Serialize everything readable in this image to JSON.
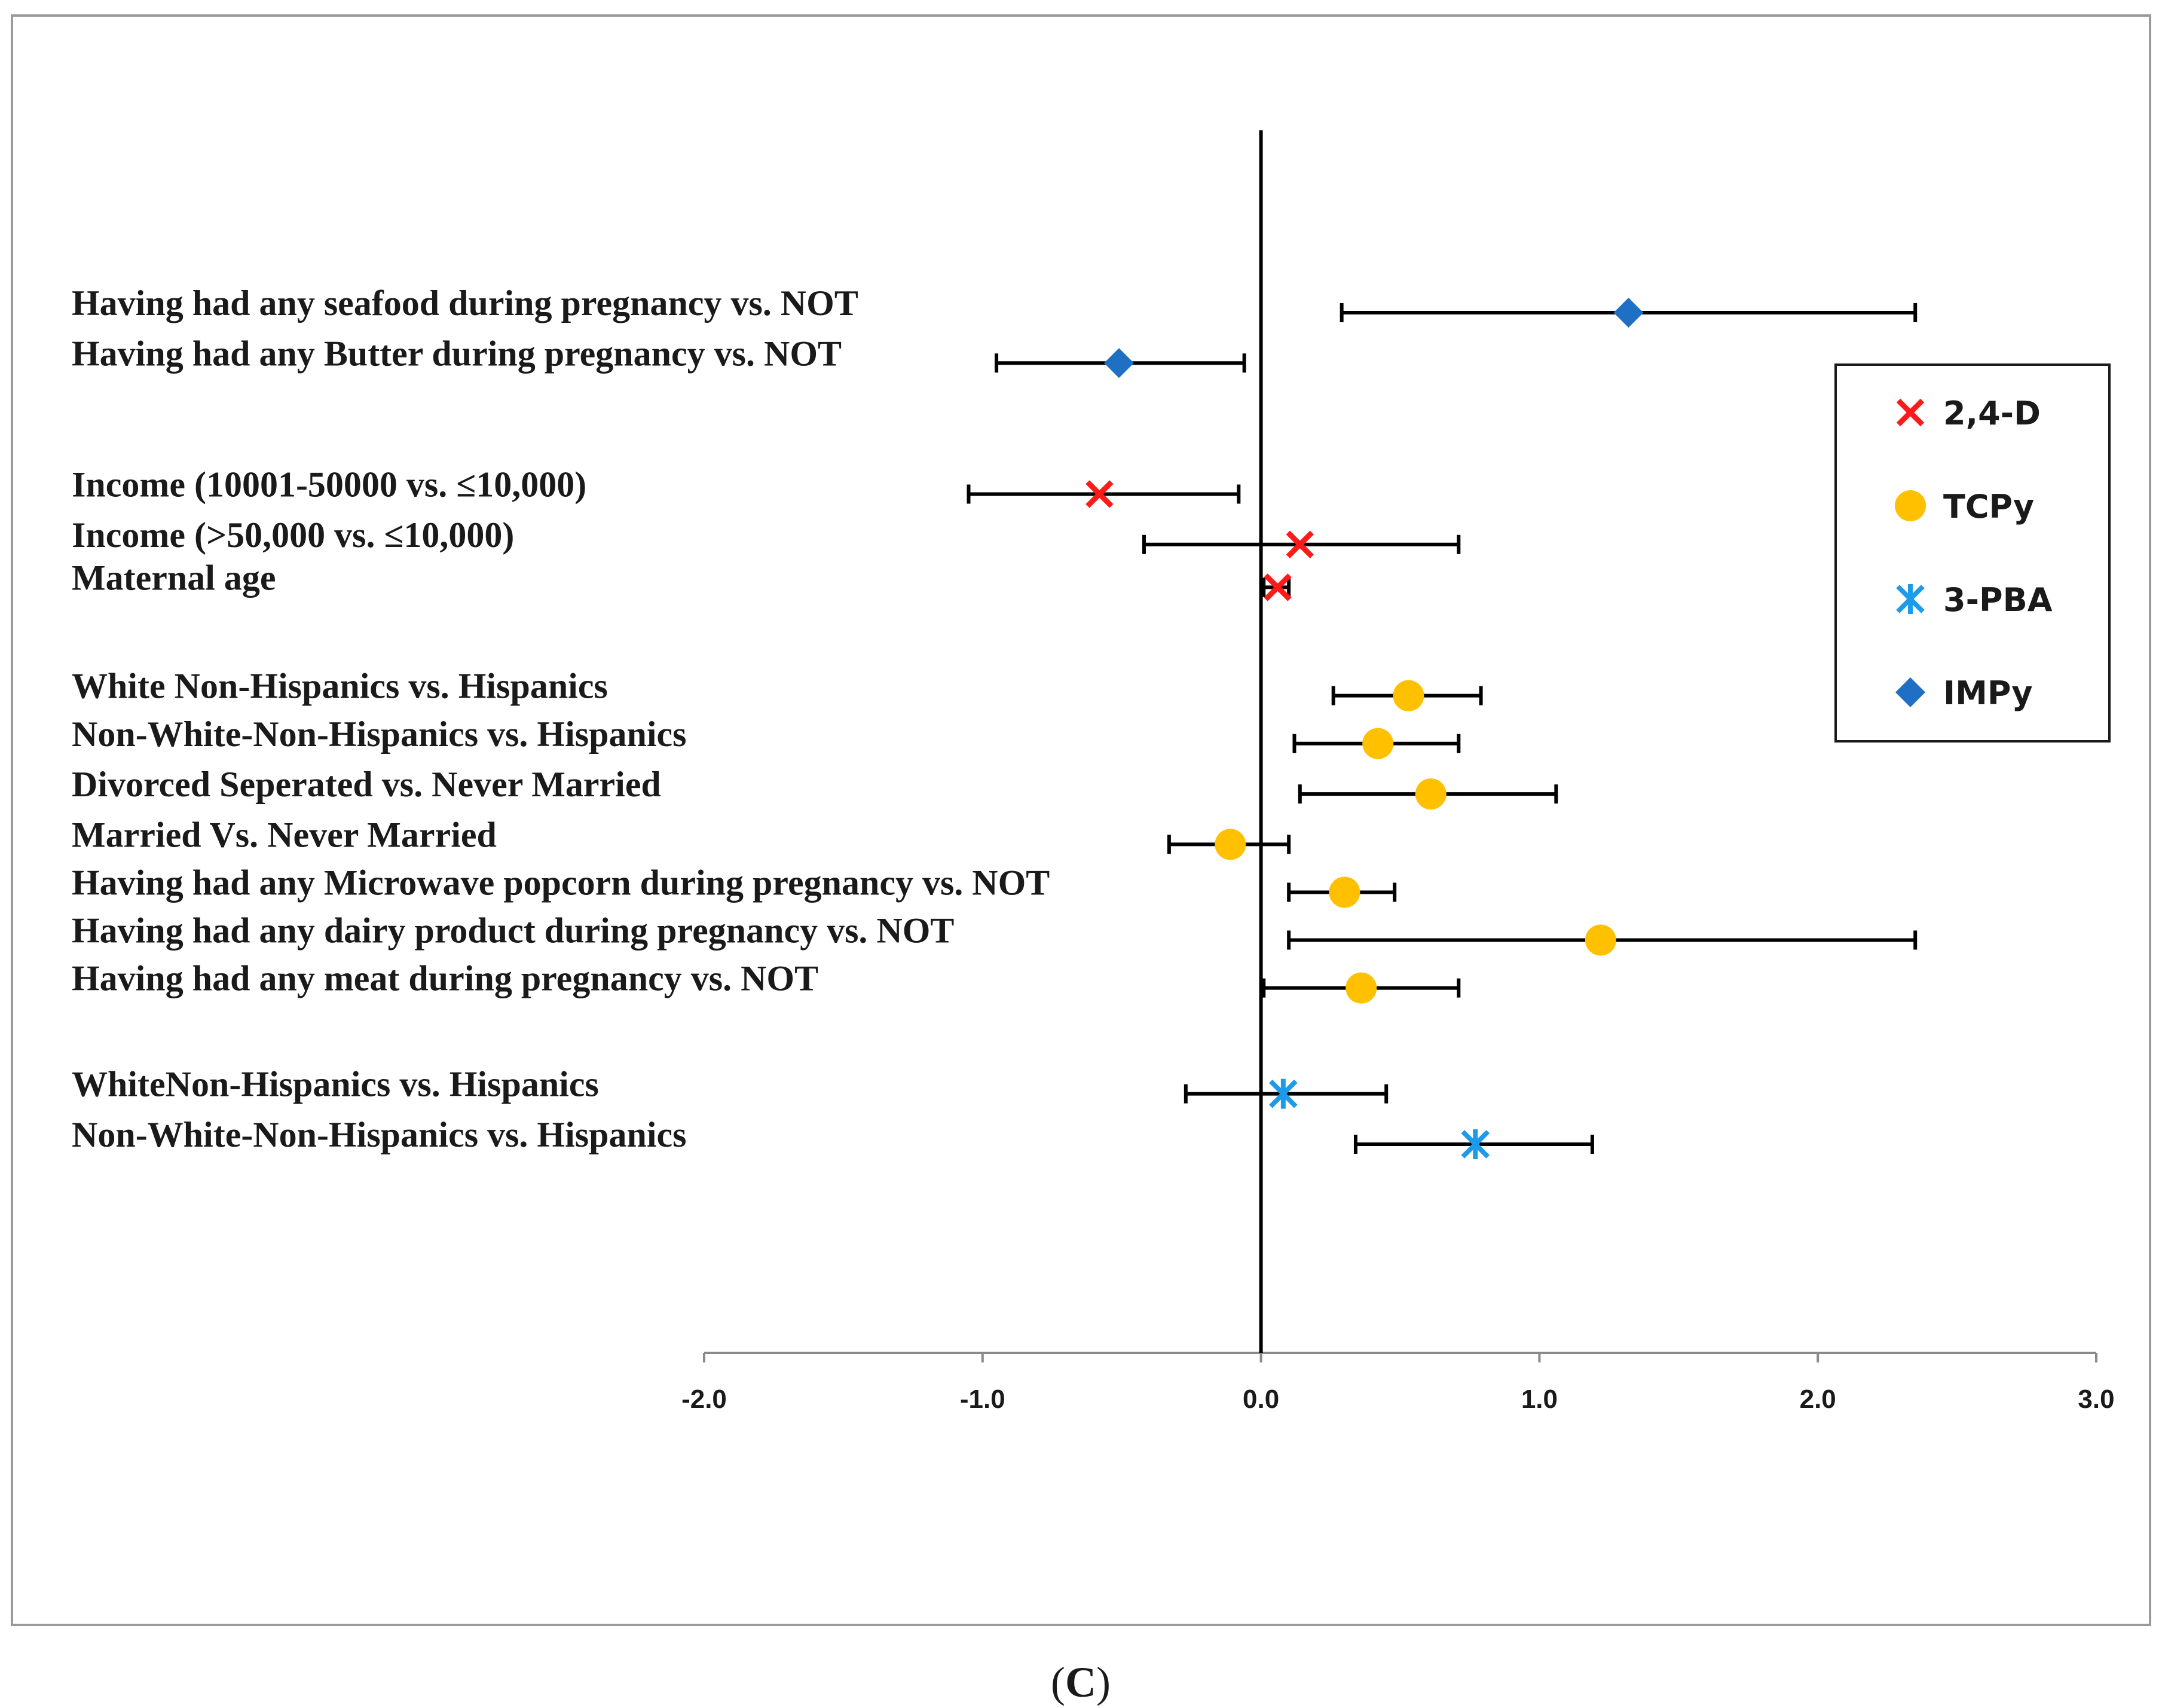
{
  "chart_data": {
    "type": "forest",
    "xlim": [
      -2.0,
      3.0
    ],
    "xticks": [
      -2.0,
      -1.0,
      0.0,
      1.0,
      2.0,
      3.0
    ],
    "xtick_labels": [
      "-2.0",
      "-1.0",
      "0.0",
      "1.0",
      "2.0",
      "3.0"
    ],
    "reference_line": 0,
    "series_styles": [
      {
        "name": "2,4-D",
        "marker": "x",
        "color": "#ff1a1a"
      },
      {
        "name": "TCPy",
        "marker": "circle",
        "color": "#ffc000"
      },
      {
        "name": "3-PBA",
        "marker": "asterisk",
        "color": "#1e9be8"
      },
      {
        "name": "IMPy",
        "marker": "diamond",
        "color": "#1f6fc4"
      }
    ],
    "rows": [
      {
        "label": "Having had any seafood during pregnancy vs. NOT",
        "series": "IMPy",
        "estimate": 1.32,
        "lower": 0.29,
        "upper": 2.35,
        "slot": 0
      },
      {
        "label": "Having had any Butter during  pregnancy vs. NOT",
        "series": "IMPy",
        "estimate": -0.51,
        "lower": -0.95,
        "upper": -0.06,
        "slot": 1
      },
      {
        "label": "Income (10001-50000 vs. ≤10,000)",
        "series": "2,4-D",
        "estimate": -0.58,
        "lower": -1.05,
        "upper": -0.08,
        "slot": 3.6
      },
      {
        "label": "Income (>50,000 vs. ≤10,000)",
        "series": "2,4-D",
        "estimate": 0.14,
        "lower": -0.42,
        "upper": 0.71,
        "slot": 4.6
      },
      {
        "label": "Maternal age",
        "series": "2,4-D",
        "estimate": 0.06,
        "lower": 0.01,
        "upper": 0.1,
        "slot": 5.45
      },
      {
        "label": "White Non-Hispanics  vs. Hispanics",
        "series": "TCPy",
        "estimate": 0.53,
        "lower": 0.26,
        "upper": 0.79,
        "slot": 7.6
      },
      {
        "label": "Non-White-Non-Hispanics   vs. Hispanics",
        "series": "TCPy",
        "estimate": 0.42,
        "lower": 0.12,
        "upper": 0.71,
        "slot": 8.55
      },
      {
        "label": "Divorced Seperated vs. Never Married",
        "series": "TCPy",
        "estimate": 0.61,
        "lower": 0.14,
        "upper": 1.06,
        "slot": 9.55
      },
      {
        "label": "Married Vs. Never Married",
        "series": "TCPy",
        "estimate": -0.11,
        "lower": -0.33,
        "upper": 0.1,
        "slot": 10.55
      },
      {
        "label": "Having had any Microwave  popcorn during pregnancy vs. NOT",
        "series": "TCPy",
        "estimate": 0.3,
        "lower": 0.1,
        "upper": 0.48,
        "slot": 11.5
      },
      {
        "label": "Having had any dairy product during pregnancy vs. NOT",
        "series": "TCPy",
        "estimate": 1.22,
        "lower": 0.1,
        "upper": 2.35,
        "slot": 12.45
      },
      {
        "label": "Having had any  meat during pregnancy vs. NOT",
        "series": "TCPy",
        "estimate": 0.36,
        "lower": 0.01,
        "upper": 0.71,
        "slot": 13.4
      },
      {
        "label": "WhiteNon-Hispanics   vs. Hispanics",
        "series": "3-PBA",
        "estimate": 0.08,
        "lower": -0.27,
        "upper": 0.45,
        "slot": 15.5
      },
      {
        "label": "Non-White-Non-Hispanics   vs. Hispanics",
        "series": "3-PBA",
        "estimate": 0.77,
        "lower": 0.34,
        "upper": 1.19,
        "slot": 16.5
      }
    ],
    "legend": {
      "position": "right",
      "entries": [
        "2,4-D",
        "TCPy",
        "3-PBA",
        "IMPy"
      ]
    }
  },
  "caption": {
    "open": "(",
    "letter": "C",
    "close": ")"
  }
}
